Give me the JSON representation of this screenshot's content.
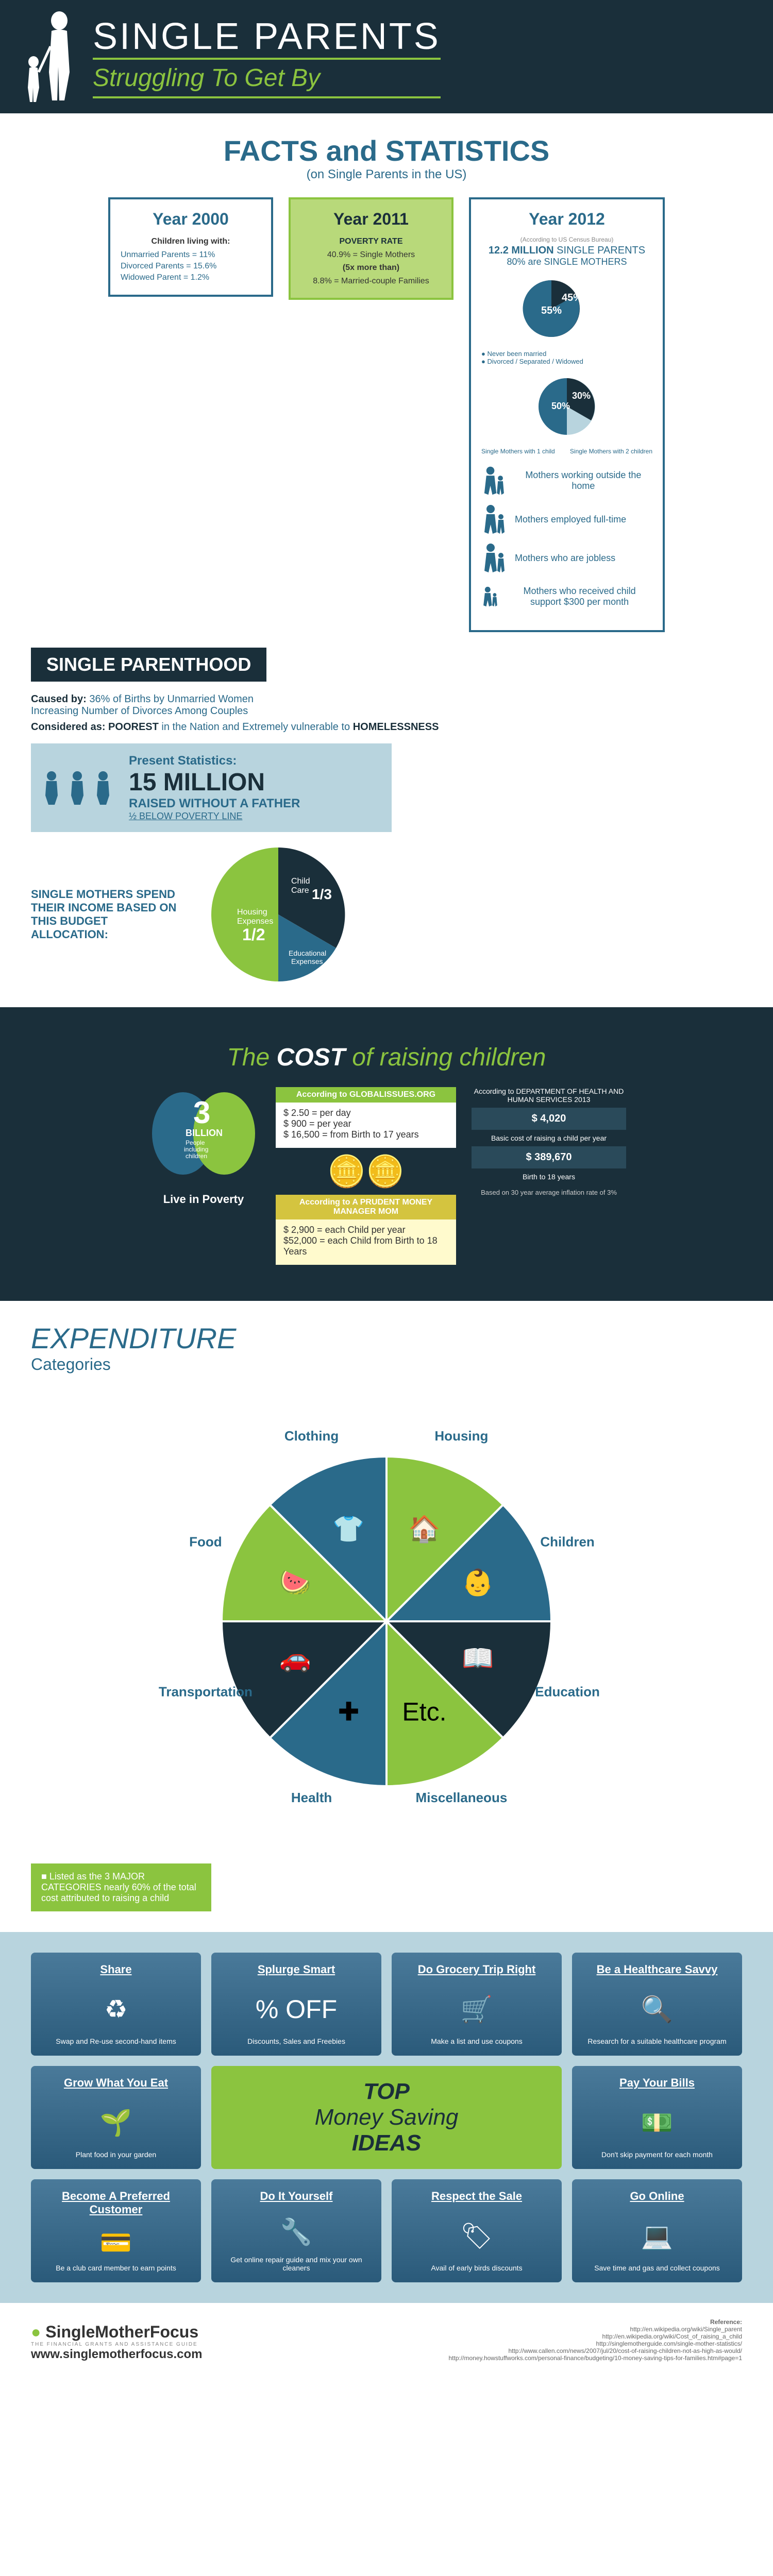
{
  "header": {
    "title": "SINGLE PARENTS",
    "subtitle": "Struggling To Get By"
  },
  "facts": {
    "title": "FACTS and STATISTICS",
    "subtitle": "(on Single Parents in the US)",
    "year2000": {
      "title": "Year 2000",
      "subtitle": "Children living with:",
      "lines": [
        "Unmarried Parents = 11%",
        "Divorced Parents   = 15.6%",
        "Widowed Parent    = 1.2%"
      ]
    },
    "year2011": {
      "title": "Year 2011",
      "subtitle": "POVERTY RATE",
      "lines": [
        "40.9% = Single Mothers",
        "(5x more than)",
        "8.8% = Married-couple Families"
      ]
    },
    "year2012": {
      "title": "Year 2012",
      "note": "(According to US Census Bureau)",
      "big1": "12.2 MILLION",
      "big1b": "SINGLE PARENTS",
      "big2": "80% are SINGLE MOTHERS",
      "pie1": {
        "a": 55,
        "b": 45,
        "a_label": "55%",
        "b_label": "45%",
        "a_color": "#2a6a8a",
        "b_color": "#1a2f3a",
        "legend_a": "Divorced\nSeparated\nWidowed",
        "legend_b": "Never been married"
      },
      "pie2": {
        "a": 50,
        "b": 30,
        "a_label": "50%",
        "b_label": "30%",
        "a_color": "#2a6a8a",
        "b_color": "#1a2f3a",
        "left": "Single Mothers with 1 child",
        "right": "Single Mothers with 2 children"
      },
      "icons": [
        "Mothers working outside the home",
        "Mothers employed full-time",
        "Mothers who are jobless",
        "Mothers who received child support $300 per month"
      ]
    }
  },
  "parenthood": {
    "band": "SINGLE PARENTHOOD",
    "caused_label": "Caused by:",
    "caused": "36% of Births by Unmarried Women\nIncreasing Number of Divorces Among Couples",
    "considered_label": "Considered as:",
    "considered_a": "POOREST",
    "considered_b": "in the Nation and Extremely vulnerable to",
    "considered_c": "HOMELESSNESS",
    "present": {
      "title": "Present Statistics:",
      "big": "15 MILLION",
      "line1": "RAISED WITHOUT A FATHER",
      "line2": "½ BELOW POVERTY LINE"
    },
    "budget_text": "SINGLE MOTHERS SPEND THEIR INCOME BASED ON THIS BUDGET ALLOCATION:",
    "budget": {
      "slices": [
        {
          "label": "Housing Expenses",
          "frac": "1/2",
          "color": "#8bc43f",
          "start": 90,
          "end": 270
        },
        {
          "label": "Child Care",
          "frac": "1/3",
          "color": "#1a2f3a",
          "start": 270,
          "end": 30
        },
        {
          "label": "Educational Expenses",
          "frac": "",
          "color": "#2a6a8a",
          "start": 30,
          "end": 90
        }
      ]
    }
  },
  "cost": {
    "title_a": "The",
    "title_b": "COST",
    "title_c": "of raising children",
    "brain_big": "3",
    "brain_unit": "BILLION",
    "brain_sub": "People including children",
    "brain_bottom": "Live in Poverty",
    "brain_colors": [
      "#2a6a8a",
      "#8bc43f"
    ],
    "global": {
      "head": "According to GLOBALISSUES.ORG",
      "lines": [
        "$ 2.50 = per day",
        "$ 900   = per year",
        "$ 16,500 = from Birth to 17 years"
      ]
    },
    "prudent": {
      "head": "According to A PRUDENT MONEY MANAGER MOM",
      "lines": [
        "$ 2,900 = each Child per year",
        "$52,000 = each Child from Birth to 18 Years"
      ]
    },
    "dhhs": {
      "head": "According to DEPARTMENT OF HEALTH AND HUMAN SERVICES 2013",
      "box1": "$ 4,020",
      "box1b": "Basic cost of raising a child per year",
      "box2": "$ 389,670",
      "box2b": "Birth to 18 years",
      "note": "Based on 30 year average inflation rate of 3%"
    }
  },
  "exp": {
    "title": "EXPENDITURE",
    "subtitle": "Categories",
    "segments": [
      {
        "label": "Housing",
        "color": "#8bc43f",
        "icon": "🏠"
      },
      {
        "label": "Children",
        "color": "#2a6a8a",
        "icon": "👶"
      },
      {
        "label": "Education",
        "color": "#1a2f3a",
        "icon": "📖"
      },
      {
        "label": "Miscellaneous",
        "color": "#8bc43f",
        "icon": "Etc."
      },
      {
        "label": "Health",
        "color": "#2a6a8a",
        "icon": "✚"
      },
      {
        "label": "Transportation",
        "color": "#1a2f3a",
        "icon": "🚗"
      },
      {
        "label": "Food",
        "color": "#8bc43f",
        "icon": "🍉"
      },
      {
        "label": "Clothing",
        "color": "#2a6a8a",
        "icon": "👕"
      }
    ],
    "greenbox": "Listed as the 3 MAJOR CATEGORIES nearly 60% of the total cost attributed to raising a child"
  },
  "money": {
    "title_a": "TOP",
    "title_b": "Money Saving",
    "title_c": "IDEAS",
    "tiles": [
      {
        "title": "Share",
        "desc": "Swap and Re-use second-hand items",
        "icon": "♻"
      },
      {
        "title": "Splurge Smart",
        "desc": "Discounts, Sales and Freebies",
        "icon": "% OFF"
      },
      {
        "title": "Do Grocery Trip Right",
        "desc": "Make a list and use coupons",
        "icon": "🛒"
      },
      {
        "title": "Be a Healthcare Savvy",
        "desc": "Research for a suitable healthcare program",
        "icon": "🔍"
      },
      {
        "title": "Grow What You Eat",
        "desc": "Plant food in your garden",
        "icon": "🌱"
      },
      {
        "title": "Pay Your Bills",
        "desc": "Don't skip payment for each month",
        "icon": "💵"
      },
      {
        "title": "Become A Preferred Customer",
        "desc": "Be a club card member to earn points",
        "icon": "💳"
      },
      {
        "title": "Do It Yourself",
        "desc": "Get online repair guide and mix your own cleaners",
        "icon": "🔧"
      },
      {
        "title": "Respect the Sale",
        "desc": "Avail of early birds discounts",
        "icon": "🏷"
      },
      {
        "title": "Go Online",
        "desc": "Save time and gas and collect coupons",
        "icon": "💻"
      }
    ]
  },
  "footer": {
    "brand": "SingleMotherFocus",
    "tagline": "THE FINANCIAL GRANTS AND ASSISTANCE GUIDE",
    "url": "www.singlemotherfocus.com",
    "ref_title": "Reference:",
    "refs": [
      "http://en.wikipedia.org/wiki/Single_parent",
      "http://en.wikipedia.org/wiki/Cost_of_raising_a_child",
      "http://singlemotherguide.com/single-mother-statistics/",
      "http://www.callen.com/news/2007/jul/20/cost-of-raising-children-not-as-high-as-would/",
      "http://money.howstuffworks.com/personal-finance/budgeting/10-money-saving-tips-for-families.htm#page=1"
    ]
  },
  "colors": {
    "navy": "#1a2f3a",
    "teal": "#2a6a8a",
    "green": "#8bc43f",
    "lightblue": "#b8d4de"
  }
}
